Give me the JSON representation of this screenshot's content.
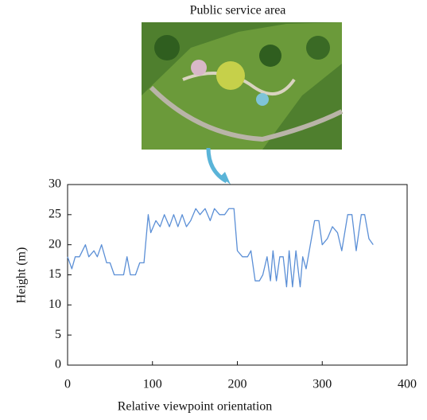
{
  "chart_data": {
    "type": "line",
    "image_caption": "Public service area",
    "xlabel": "Relative viewpoint orientation",
    "ylabel": "Height (m)",
    "x": [
      0,
      5,
      9,
      14,
      21,
      25,
      31,
      35,
      40,
      46,
      50,
      55,
      61,
      66,
      70,
      74,
      80,
      85,
      90,
      95,
      98,
      104,
      109,
      114,
      120,
      125,
      130,
      135,
      140,
      145,
      151,
      156,
      162,
      168,
      173,
      179,
      185,
      190,
      196,
      200,
      206,
      212,
      216,
      221,
      226,
      230,
      235,
      239,
      242,
      246,
      250,
      254,
      258,
      261,
      265,
      269,
      274,
      277,
      281,
      286,
      291,
      296,
      300,
      306,
      312,
      318,
      323,
      330,
      335,
      340,
      346,
      350,
      355,
      360
    ],
    "series": [
      {
        "color": "#5b8fd6",
        "values": [
          18,
          16,
          18,
          18,
          20,
          18,
          19,
          18,
          20,
          17,
          17,
          15,
          15,
          15,
          18,
          15,
          15,
          17,
          17,
          25,
          22,
          24,
          23,
          25,
          23,
          25,
          23,
          25,
          23,
          24,
          26,
          25,
          26,
          24,
          26,
          25,
          25,
          26,
          26,
          19,
          18,
          18,
          19,
          14,
          14,
          15,
          18,
          14,
          19,
          14,
          18,
          18,
          13,
          19,
          13,
          19,
          13,
          18,
          16,
          20,
          24,
          24,
          20,
          21,
          23,
          22,
          19,
          25,
          25,
          19,
          25,
          25,
          21,
          20
        ]
      }
    ],
    "xlim": [
      0,
      400
    ],
    "xticks": [
      0,
      100,
      200,
      300,
      400
    ],
    "ylim": [
      0,
      30
    ],
    "yticks": [
      0,
      5,
      10,
      15,
      20,
      25,
      30
    ]
  }
}
